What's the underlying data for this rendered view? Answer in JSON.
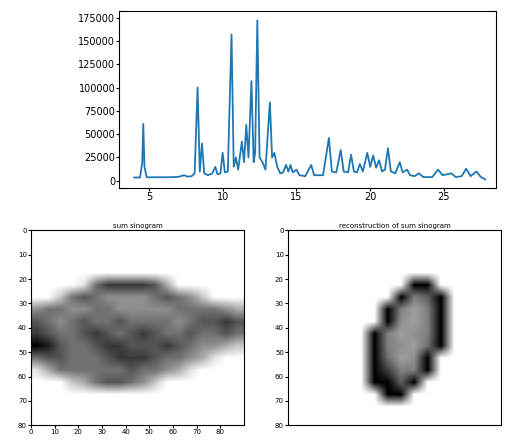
{
  "chart_data": [
    {
      "type": "line",
      "color": "#1f77b4",
      "grid": false,
      "x": [
        4.0,
        4.4,
        4.55,
        4.62,
        4.7,
        4.85,
        5.5,
        6.5,
        7.0,
        7.4,
        7.6,
        7.9,
        8.1,
        8.3,
        8.45,
        8.6,
        8.75,
        9.0,
        9.3,
        9.5,
        9.65,
        9.85,
        10.0,
        10.15,
        10.35,
        10.6,
        10.75,
        10.9,
        11.05,
        11.3,
        11.45,
        11.6,
        11.75,
        11.95,
        12.1,
        12.2,
        12.35,
        12.5,
        12.7,
        12.9,
        13.2,
        13.35,
        13.5,
        13.7,
        13.9,
        14.1,
        14.3,
        14.45,
        14.6,
        14.75,
        15.0,
        15.2,
        15.6,
        16.0,
        16.2,
        16.8,
        17.2,
        17.4,
        17.7,
        18.0,
        18.2,
        18.5,
        18.7,
        18.9,
        19.1,
        19.3,
        19.5,
        19.8,
        20.0,
        20.2,
        20.4,
        20.6,
        20.8,
        21.0,
        21.2,
        21.4,
        21.7,
        22.0,
        22.2,
        22.5,
        22.7,
        23.0,
        23.3,
        23.6,
        24.2,
        24.6,
        24.9,
        25.5,
        25.8,
        26.2,
        26.5,
        26.8,
        27.2,
        27.5,
        27.8
      ],
      "values": [
        3500,
        3600,
        20000,
        61000,
        15000,
        3800,
        3800,
        3900,
        4200,
        6000,
        4500,
        5000,
        8000,
        100000,
        10000,
        40000,
        8000,
        6000,
        8000,
        15000,
        7000,
        8000,
        30000,
        9000,
        10000,
        157000,
        15000,
        25000,
        12000,
        42000,
        20000,
        60000,
        25000,
        107000,
        20000,
        30000,
        172000,
        25000,
        20000,
        12000,
        84000,
        25000,
        30000,
        15000,
        8000,
        9000,
        17000,
        10000,
        17000,
        9000,
        12000,
        6000,
        5000,
        17000,
        6000,
        6000,
        46000,
        10000,
        9000,
        33000,
        10000,
        9000,
        28000,
        10000,
        9000,
        18000,
        10000,
        30000,
        15000,
        27000,
        14000,
        22000,
        10000,
        12000,
        35000,
        10000,
        8000,
        20000,
        9000,
        12000,
        6000,
        5000,
        8000,
        4000,
        4000,
        12000,
        6000,
        8000,
        4000,
        5000,
        13000,
        5000,
        10000,
        4000,
        1500
      ],
      "xlim": [
        3.0,
        28.5
      ],
      "ylim": [
        -8000,
        182000
      ],
      "xticks": [
        5,
        10,
        15,
        20,
        25
      ],
      "yticks": [
        0,
        25000,
        50000,
        75000,
        100000,
        125000,
        150000,
        175000
      ]
    },
    {
      "type": "heatmap",
      "title": "sum sinogram",
      "color": "gray_r",
      "xlim": [
        0,
        90
      ],
      "ylim": [
        80,
        0
      ],
      "xticks": [
        0,
        10,
        20,
        30,
        40,
        50,
        60,
        70,
        80
      ],
      "yticks": [
        0,
        10,
        20,
        30,
        40,
        50,
        60,
        70,
        80
      ],
      "cells": [
        [
          0,
          0,
          0,
          0,
          0,
          0,
          0,
          0,
          0,
          0,
          0,
          0,
          0,
          0,
          0,
          0,
          0,
          0
        ],
        [
          0,
          0,
          0,
          0,
          0,
          0,
          0,
          0,
          0,
          0,
          0,
          0,
          0,
          0,
          0,
          0,
          0,
          0
        ],
        [
          0,
          0,
          0,
          0,
          0,
          0,
          0,
          0,
          0,
          0,
          0,
          0,
          0,
          0,
          0,
          0,
          0,
          0
        ],
        [
          0,
          0,
          0,
          0,
          0,
          0,
          0,
          0,
          0,
          0,
          0,
          0,
          0,
          0,
          0,
          0,
          0,
          0
        ],
        [
          0,
          0,
          0,
          0,
          0.1,
          0.5,
          0.7,
          0.7,
          0.7,
          0.7,
          0.6,
          0.3,
          0,
          0,
          0,
          0,
          0,
          0
        ],
        [
          0,
          0,
          0.2,
          0.5,
          0.6,
          0.5,
          0.4,
          0.4,
          0.4,
          0.4,
          0.5,
          0.6,
          0.5,
          0.4,
          0.2,
          0,
          0,
          0
        ],
        [
          0.4,
          0.5,
          0.5,
          0.4,
          0.4,
          0.5,
          0.5,
          0.4,
          0.4,
          0.4,
          0.4,
          0.4,
          0.5,
          0.5,
          0.5,
          0.5,
          0.4,
          0.3
        ],
        [
          0.6,
          0.5,
          0.4,
          0.5,
          0.6,
          0.5,
          0.5,
          0.6,
          0.5,
          0.5,
          0.5,
          0.5,
          0.4,
          0.5,
          0.6,
          0.6,
          0.7,
          0.6
        ],
        [
          0.7,
          0.6,
          0.5,
          0.5,
          0.6,
          0.7,
          0.6,
          0.5,
          0.6,
          0.7,
          0.6,
          0.5,
          0.5,
          0.6,
          0.5,
          0.5,
          0.6,
          0.5
        ],
        [
          0.9,
          0.8,
          0.6,
          0.5,
          0.5,
          0.6,
          0.7,
          0.7,
          0.6,
          0.6,
          0.6,
          0.7,
          0.6,
          0.5,
          0.4,
          0.4,
          0.3,
          0.2
        ],
        [
          0.5,
          0.6,
          0.6,
          0.5,
          0.5,
          0.5,
          0.6,
          0.7,
          0.7,
          0.7,
          0.6,
          0.5,
          0.5,
          0.4,
          0.3,
          0.1,
          0,
          0
        ],
        [
          0.1,
          0.3,
          0.5,
          0.5,
          0.5,
          0.5,
          0.5,
          0.5,
          0.6,
          0.5,
          0.5,
          0.4,
          0.3,
          0.1,
          0,
          0,
          0,
          0
        ],
        [
          0,
          0,
          0,
          0.2,
          0.3,
          0.5,
          0.6,
          0.6,
          0.5,
          0.4,
          0.2,
          0,
          0,
          0,
          0,
          0,
          0,
          0
        ],
        [
          0,
          0,
          0,
          0,
          0,
          0,
          0,
          0,
          0,
          0,
          0,
          0,
          0,
          0,
          0,
          0,
          0,
          0
        ],
        [
          0,
          0,
          0,
          0,
          0,
          0,
          0,
          0,
          0,
          0,
          0,
          0,
          0,
          0,
          0,
          0,
          0,
          0
        ],
        [
          0,
          0,
          0,
          0,
          0,
          0,
          0,
          0,
          0,
          0,
          0,
          0,
          0,
          0,
          0,
          0,
          0,
          0
        ]
      ]
    },
    {
      "type": "heatmap",
      "title": "reconstruction of sum sinogram",
      "color": "gray_r",
      "tick_labels": "y",
      "xlim": [
        0,
        80
      ],
      "ylim": [
        80,
        0
      ],
      "yticks": [
        0,
        10,
        20,
        30,
        40,
        50,
        60,
        70,
        80
      ],
      "cells": [
        [
          0,
          0,
          0,
          0,
          0,
          0,
          0,
          0,
          0,
          0,
          0,
          0,
          0,
          0,
          0,
          0
        ],
        [
          0,
          0,
          0,
          0,
          0,
          0,
          0,
          0,
          0,
          0,
          0,
          0,
          0,
          0,
          0,
          0
        ],
        [
          0,
          0,
          0,
          0,
          0,
          0,
          0,
          0,
          0,
          0,
          0,
          0,
          0,
          0,
          0,
          0
        ],
        [
          0,
          0,
          0,
          0,
          0,
          0,
          0,
          0,
          0,
          0,
          0,
          0,
          0,
          0,
          0,
          0
        ],
        [
          0,
          0,
          0,
          0,
          0,
          0,
          0,
          0,
          0,
          0.8,
          0.8,
          0,
          0,
          0,
          0,
          0
        ],
        [
          0,
          0,
          0,
          0,
          0,
          0,
          0,
          0,
          0.8,
          0.4,
          0.5,
          0.8,
          0,
          0,
          0,
          0
        ],
        [
          0,
          0,
          0,
          0,
          0,
          0,
          0,
          0.8,
          0.4,
          0.3,
          0.4,
          0.8,
          0,
          0,
          0,
          0
        ],
        [
          0,
          0,
          0,
          0,
          0,
          0,
          0,
          0.8,
          0.35,
          0.3,
          0.4,
          0.8,
          0,
          0,
          0,
          0
        ],
        [
          0,
          0,
          0,
          0,
          0,
          0,
          0.8,
          0.4,
          0.3,
          0.35,
          0.4,
          0.8,
          0,
          0,
          0,
          0
        ],
        [
          0,
          0,
          0,
          0,
          0,
          0,
          0.8,
          0.4,
          0.35,
          0.3,
          0.45,
          0.8,
          0,
          0,
          0,
          0
        ],
        [
          0,
          0,
          0,
          0,
          0,
          0,
          0.8,
          0.45,
          0.3,
          0.35,
          0.8,
          0,
          0,
          0,
          0,
          0
        ],
        [
          0,
          0,
          0,
          0,
          0,
          0,
          0.8,
          0.6,
          0.4,
          0.4,
          0.8,
          0,
          0,
          0,
          0,
          0
        ],
        [
          0,
          0,
          0,
          0,
          0,
          0,
          0.8,
          0.8,
          0.5,
          0.8,
          0,
          0,
          0,
          0,
          0,
          0
        ],
        [
          0,
          0,
          0,
          0,
          0,
          0,
          0,
          0.8,
          0.8,
          0,
          0,
          0,
          0,
          0,
          0,
          0
        ],
        [
          0,
          0,
          0,
          0,
          0,
          0,
          0,
          0,
          0,
          0,
          0,
          0,
          0,
          0,
          0,
          0
        ],
        [
          0,
          0,
          0,
          0,
          0,
          0,
          0,
          0,
          0,
          0,
          0,
          0,
          0,
          0,
          0,
          0
        ]
      ]
    }
  ]
}
